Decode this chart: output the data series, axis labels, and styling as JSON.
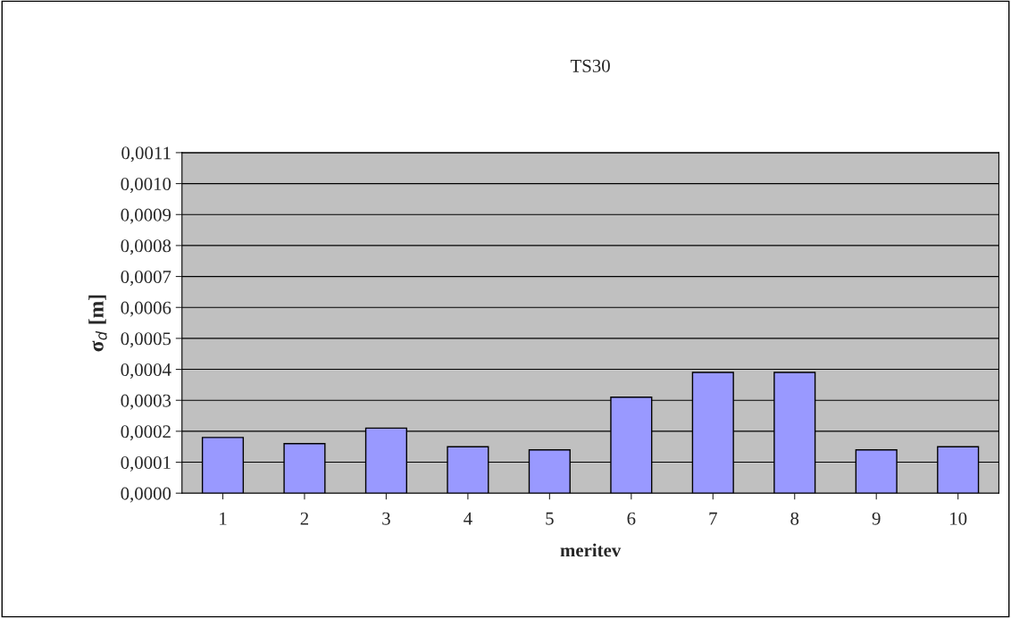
{
  "chart_data": {
    "type": "bar",
    "title": "TS30",
    "xlabel": "meritev",
    "ylabel": "σ$_{d}$ [m]",
    "categories": [
      "1",
      "2",
      "3",
      "4",
      "5",
      "6",
      "7",
      "8",
      "9",
      "10"
    ],
    "values": [
      0.00018,
      0.00016,
      0.00021,
      0.00015,
      0.00014,
      0.00031,
      0.00039,
      0.00039,
      0.00014,
      0.00015
    ],
    "color": "#9999ff",
    "ylim": [
      0,
      0.0011
    ],
    "yticks": [
      {
        "value": 0,
        "label": "0,0000"
      },
      {
        "value": 0.0001,
        "label": "0,0001"
      },
      {
        "value": 0.0002,
        "label": "0,0002"
      },
      {
        "value": 0.0003,
        "label": "0,0003"
      },
      {
        "value": 0.0004,
        "label": "0,0004"
      },
      {
        "value": 0.0005,
        "label": "0,0005"
      },
      {
        "value": 0.0006,
        "label": "0,0006"
      },
      {
        "value": 0.0007,
        "label": "0,0007"
      },
      {
        "value": 0.0008,
        "label": "0,0008"
      },
      {
        "value": 0.0009,
        "label": "0,0009"
      },
      {
        "value": 0.001,
        "label": "0,0010"
      },
      {
        "value": 0.0011,
        "label": "0,0011"
      }
    ],
    "grid": "y",
    "legend": false
  }
}
